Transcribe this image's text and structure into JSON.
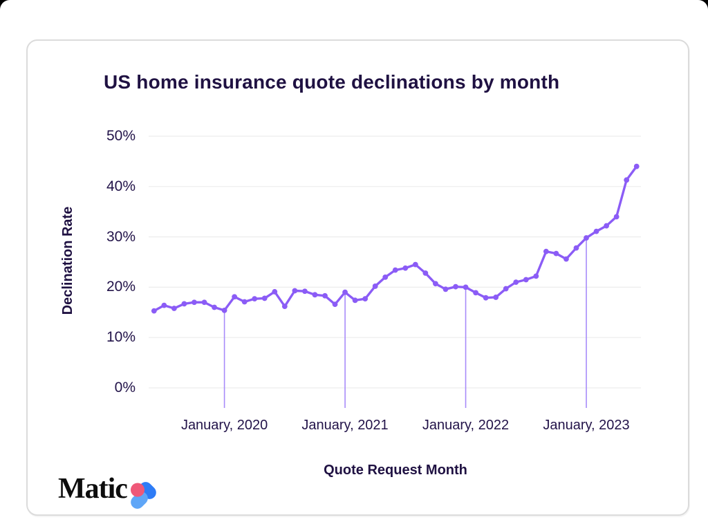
{
  "title": "US home insurance quote declinations by month",
  "brand": {
    "name": "Matic",
    "heart_pink": "#EF5878",
    "heart_blue": "#2E7CF6",
    "heart_light_blue": "#5FA6F7"
  },
  "chart_data": {
    "type": "line",
    "title": "US home insurance quote declinations by month",
    "xlabel": "Quote Request Month",
    "ylabel": "Declination Rate",
    "line_color": "#8B5CF6",
    "marker": "circle",
    "grid": true,
    "grid_color": "#ececec",
    "jan_guide_color": "#A78BFA",
    "ylim": [
      0,
      50
    ],
    "yticks": [
      {
        "v": 0,
        "label": "0%"
      },
      {
        "v": 10,
        "label": "10%"
      },
      {
        "v": 20,
        "label": "20%"
      },
      {
        "v": 30,
        "label": "30%"
      },
      {
        "v": 40,
        "label": "40%"
      },
      {
        "v": 50,
        "label": "50%"
      }
    ],
    "x_ticks": [
      {
        "index": 7,
        "label": "January, 2020"
      },
      {
        "index": 19,
        "label": "January, 2021"
      },
      {
        "index": 31,
        "label": "January, 2022"
      },
      {
        "index": 43,
        "label": "January, 2023"
      }
    ],
    "months": [
      "2019-06",
      "2019-07",
      "2019-08",
      "2019-09",
      "2019-10",
      "2019-11",
      "2019-12",
      "2020-01",
      "2020-02",
      "2020-03",
      "2020-04",
      "2020-05",
      "2020-06",
      "2020-07",
      "2020-08",
      "2020-09",
      "2020-10",
      "2020-11",
      "2020-12",
      "2021-01",
      "2021-02",
      "2021-03",
      "2021-04",
      "2021-05",
      "2021-06",
      "2021-07",
      "2021-08",
      "2021-09",
      "2021-10",
      "2021-11",
      "2021-12",
      "2022-01",
      "2022-02",
      "2022-03",
      "2022-04",
      "2022-05",
      "2022-06",
      "2022-07",
      "2022-08",
      "2022-09",
      "2022-10",
      "2022-11",
      "2022-12",
      "2023-01",
      "2023-02",
      "2023-03",
      "2023-04",
      "2023-05",
      "2023-06"
    ],
    "values": [
      15.3,
      16.4,
      15.8,
      16.7,
      17.0,
      17.0,
      16.0,
      15.4,
      18.1,
      17.1,
      17.7,
      17.8,
      19.1,
      16.2,
      19.3,
      19.2,
      18.5,
      18.3,
      16.6,
      19.0,
      17.4,
      17.7,
      20.2,
      22.0,
      23.4,
      23.8,
      24.5,
      22.8,
      20.7,
      19.6,
      20.1,
      20.0,
      18.9,
      17.9,
      18.0,
      19.7,
      21.0,
      21.5,
      22.2,
      27.1,
      26.7,
      25.6,
      27.8,
      29.8,
      31.1,
      32.2,
      34.0,
      41.3,
      44.0
    ]
  }
}
